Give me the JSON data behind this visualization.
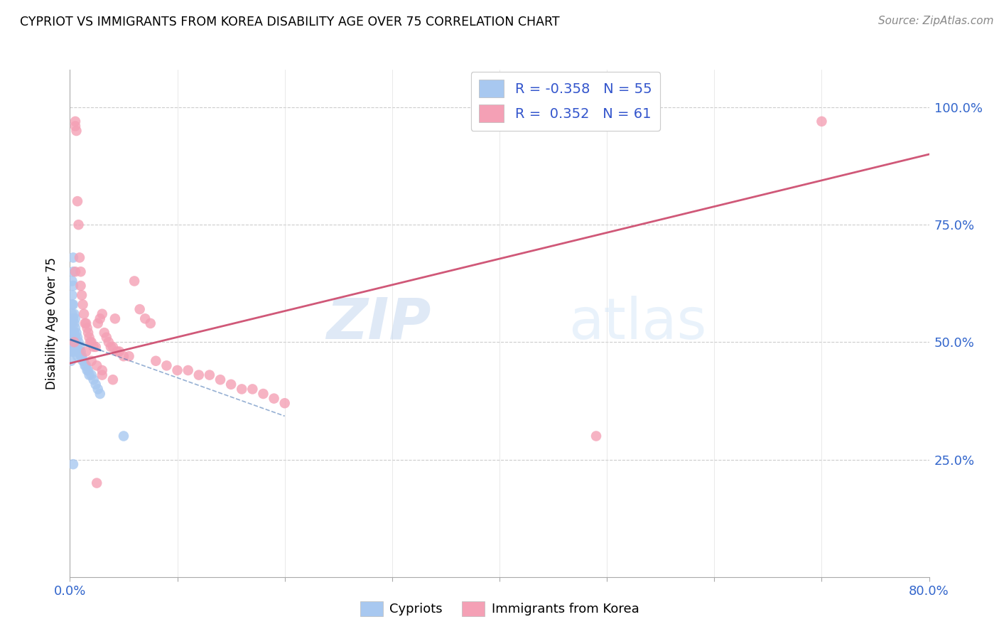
{
  "title": "CYPRIOT VS IMMIGRANTS FROM KOREA DISABILITY AGE OVER 75 CORRELATION CHART",
  "source": "Source: ZipAtlas.com",
  "ylabel": "Disability Age Over 75",
  "x_min": 0.0,
  "x_max": 0.8,
  "y_min": 0.0,
  "y_max": 1.08,
  "legend_R1": "-0.358",
  "legend_N1": "55",
  "legend_R2": "0.352",
  "legend_N2": "61",
  "cypriot_color": "#a8c8f0",
  "korea_color": "#f4a0b5",
  "trend_blue": "#4070b0",
  "trend_pink": "#d05878",
  "watermark_zip": "ZIP",
  "watermark_atlas": "atlas",
  "cypriot_x": [
    0.001,
    0.001,
    0.001,
    0.001,
    0.001,
    0.002,
    0.002,
    0.002,
    0.002,
    0.002,
    0.002,
    0.002,
    0.003,
    0.003,
    0.003,
    0.003,
    0.003,
    0.003,
    0.003,
    0.003,
    0.004,
    0.004,
    0.004,
    0.004,
    0.004,
    0.005,
    0.005,
    0.005,
    0.005,
    0.006,
    0.006,
    0.006,
    0.007,
    0.007,
    0.007,
    0.008,
    0.008,
    0.009,
    0.01,
    0.01,
    0.011,
    0.012,
    0.013,
    0.014,
    0.015,
    0.016,
    0.017,
    0.018,
    0.02,
    0.022,
    0.024,
    0.026,
    0.028,
    0.05,
    0.003
  ],
  "cypriot_y": [
    0.54,
    0.52,
    0.5,
    0.48,
    0.46,
    0.63,
    0.6,
    0.58,
    0.56,
    0.54,
    0.52,
    0.5,
    0.68,
    0.65,
    0.62,
    0.58,
    0.55,
    0.52,
    0.5,
    0.48,
    0.56,
    0.54,
    0.52,
    0.5,
    0.48,
    0.55,
    0.53,
    0.51,
    0.49,
    0.52,
    0.5,
    0.48,
    0.51,
    0.49,
    0.47,
    0.5,
    0.48,
    0.49,
    0.48,
    0.47,
    0.47,
    0.46,
    0.46,
    0.45,
    0.45,
    0.44,
    0.44,
    0.43,
    0.43,
    0.42,
    0.41,
    0.4,
    0.39,
    0.3,
    0.24
  ],
  "korea_x": [
    0.004,
    0.005,
    0.005,
    0.006,
    0.007,
    0.008,
    0.009,
    0.01,
    0.011,
    0.012,
    0.013,
    0.014,
    0.015,
    0.016,
    0.017,
    0.018,
    0.019,
    0.02,
    0.022,
    0.024,
    0.026,
    0.028,
    0.03,
    0.032,
    0.034,
    0.036,
    0.038,
    0.04,
    0.042,
    0.044,
    0.046,
    0.05,
    0.055,
    0.06,
    0.065,
    0.07,
    0.075,
    0.08,
    0.09,
    0.1,
    0.11,
    0.12,
    0.13,
    0.14,
    0.15,
    0.16,
    0.17,
    0.18,
    0.19,
    0.2,
    0.005,
    0.01,
    0.015,
    0.02,
    0.025,
    0.03,
    0.49,
    0.03,
    0.04,
    0.7,
    0.025
  ],
  "korea_y": [
    0.5,
    0.97,
    0.96,
    0.95,
    0.8,
    0.75,
    0.68,
    0.65,
    0.6,
    0.58,
    0.56,
    0.54,
    0.54,
    0.53,
    0.52,
    0.51,
    0.5,
    0.5,
    0.49,
    0.49,
    0.54,
    0.55,
    0.56,
    0.52,
    0.51,
    0.5,
    0.49,
    0.49,
    0.55,
    0.48,
    0.48,
    0.47,
    0.47,
    0.63,
    0.57,
    0.55,
    0.54,
    0.46,
    0.45,
    0.44,
    0.44,
    0.43,
    0.43,
    0.42,
    0.41,
    0.4,
    0.4,
    0.39,
    0.38,
    0.37,
    0.65,
    0.62,
    0.48,
    0.46,
    0.45,
    0.44,
    0.3,
    0.43,
    0.42,
    0.97,
    0.2
  ],
  "korea_trend_x0": 0.0,
  "korea_trend_y0": 0.455,
  "korea_trend_x1": 0.8,
  "korea_trend_y1": 0.9,
  "cypriot_trend_x0": 0.001,
  "cypriot_trend_y0": 0.505,
  "cypriot_trend_x1": 0.05,
  "cypriot_trend_y1": 0.465
}
